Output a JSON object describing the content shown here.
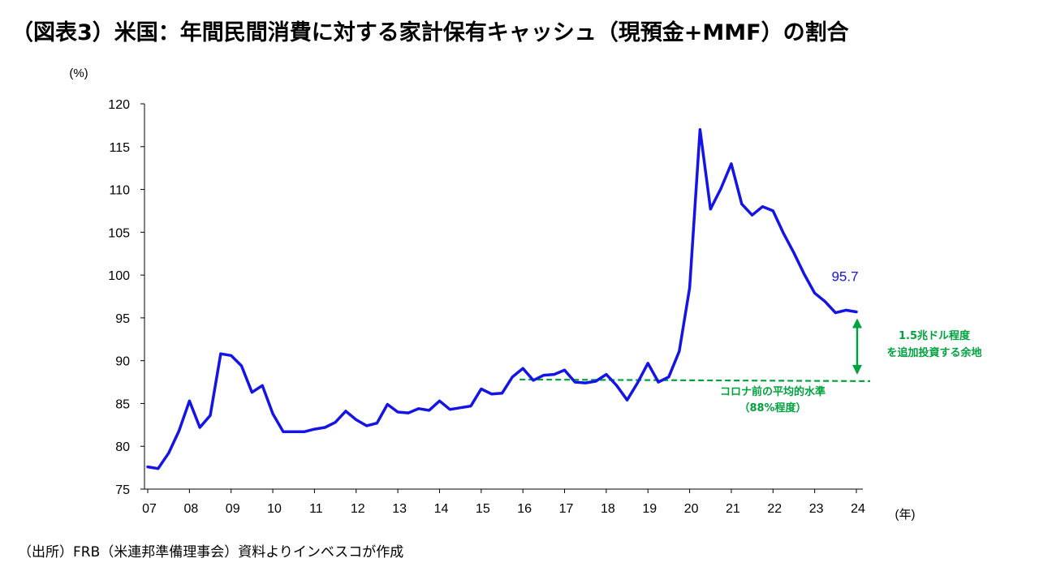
{
  "title": "（図表3）米国：年間民間消費に対する家計保有キャッシュ（現預金+MMF）の割合",
  "source": "（出所）FRB（米連邦準備理事会）資料よりインベスコが作成",
  "colors": {
    "series": "#1414e6",
    "benchmark": "#00a23d"
  },
  "chart_data": {
    "type": "line",
    "title": "（図表3）米国：年間民間消費に対する家計保有キャッシュ（現預金+MMF）の割合",
    "ylabel": "(%)",
    "xlabel": "(年)",
    "ylim": [
      75,
      120
    ],
    "yticks": [
      75,
      80,
      85,
      90,
      95,
      100,
      105,
      110,
      115,
      120
    ],
    "xlim": [
      2007.0,
      2024.2
    ],
    "xticks": [
      "07",
      "08",
      "09",
      "10",
      "11",
      "12",
      "13",
      "14",
      "15",
      "16",
      "17",
      "18",
      "19",
      "20",
      "21",
      "22",
      "23",
      "24"
    ],
    "grid": false,
    "series": [
      {
        "x": [
          2007.0,
          2007.25,
          2007.5,
          2007.75,
          2008.0,
          2008.25,
          2008.5,
          2008.75,
          2009.0,
          2009.25,
          2009.5,
          2009.75,
          2010.0,
          2010.25,
          2010.5,
          2010.75,
          2011.0,
          2011.25,
          2011.5,
          2011.75,
          2012.0,
          2012.25,
          2012.5,
          2012.75,
          2013.0,
          2013.25,
          2013.5,
          2013.75,
          2014.0,
          2014.25,
          2014.5,
          2014.75,
          2015.0,
          2015.25,
          2015.5,
          2015.75,
          2016.0,
          2016.25,
          2016.5,
          2016.75,
          2017.0,
          2017.25,
          2017.5,
          2017.75,
          2018.0,
          2018.25,
          2018.5,
          2018.75,
          2019.0,
          2019.25,
          2019.5,
          2019.75,
          2020.0,
          2020.25,
          2020.5,
          2020.75,
          2021.0,
          2021.25,
          2021.5,
          2021.75,
          2022.0,
          2022.25,
          2022.5,
          2022.75,
          2023.0,
          2023.25,
          2023.5,
          2023.75,
          2024.0
        ],
        "y": [
          77.6,
          77.4,
          79.2,
          81.8,
          85.3,
          82.2,
          83.6,
          90.8,
          90.6,
          89.4,
          86.3,
          87.1,
          83.8,
          81.7,
          81.7,
          81.7,
          82.0,
          82.2,
          82.8,
          84.1,
          83.1,
          82.4,
          82.7,
          84.9,
          84.0,
          83.9,
          84.4,
          84.2,
          85.3,
          84.3,
          84.5,
          84.7,
          86.7,
          86.1,
          86.2,
          88.1,
          89.1,
          87.7,
          88.3,
          88.4,
          88.9,
          87.5,
          87.4,
          87.6,
          88.4,
          87.1,
          85.4,
          87.4,
          89.7,
          87.5,
          88.1,
          91.1,
          98.5,
          117.0,
          107.7,
          110.1,
          113.0,
          108.3,
          107.0,
          108.0,
          107.5,
          104.9,
          102.6,
          100.1,
          97.9,
          96.9,
          95.6,
          95.9,
          95.7
        ]
      }
    ],
    "last_value_label": "95.7",
    "benchmark": {
      "value": 87.8,
      "from": 2016.0,
      "label_line1": "コロナ前の平均的水準",
      "label_line2": "（88%程度）"
    },
    "gap_annotation": {
      "line1": "1.5兆ドル程度",
      "line2": "を追加投資する余地"
    }
  }
}
